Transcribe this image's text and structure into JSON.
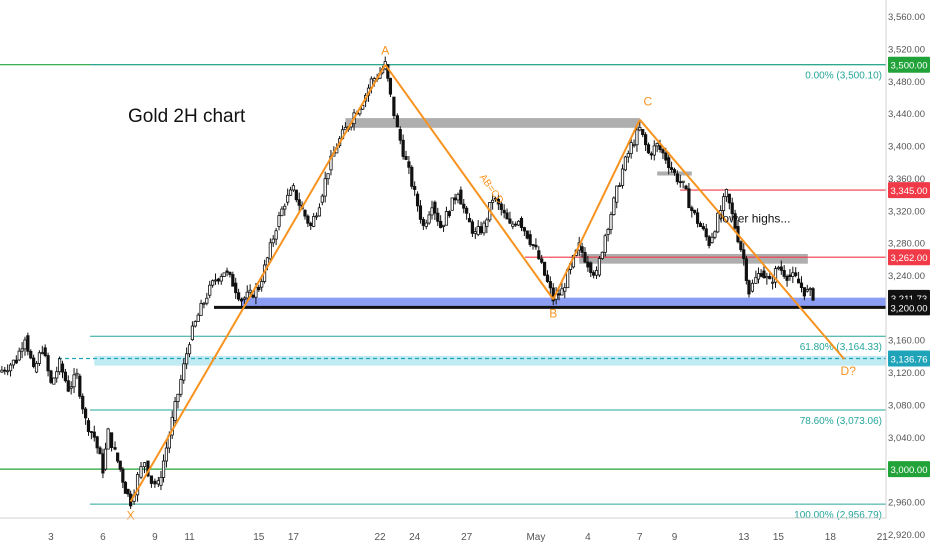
{
  "chart_data": {
    "type": "candlestick",
    "title": "Gold 2H chart",
    "y_axis": {
      "min": 2900,
      "max": 3580,
      "ticks": [
        "2,920.00",
        "2,960.00",
        "3,000.00",
        "3,040.00",
        "3,080.00",
        "3,120.00",
        "3,160.00",
        "3,200.00",
        "3,240.00",
        "3,280.00",
        "3,320.00",
        "3,360.00",
        "3,400.00",
        "3,440.00",
        "3,480.00",
        "3,520.00",
        "3,560.00"
      ],
      "tick_values": [
        2920,
        2960,
        3000,
        3040,
        3080,
        3120,
        3160,
        3200,
        3240,
        3280,
        3320,
        3360,
        3400,
        3440,
        3480,
        3520,
        3560
      ]
    },
    "x_axis": {
      "ticks": [
        {
          "label": "3",
          "day": 3
        },
        {
          "label": "6",
          "day": 6
        },
        {
          "label": "9",
          "day": 9
        },
        {
          "label": "11",
          "day": 11
        },
        {
          "label": "15",
          "day": 15
        },
        {
          "label": "17",
          "day": 17
        },
        {
          "label": "22",
          "day": 22
        },
        {
          "label": "24",
          "day": 24
        },
        {
          "label": "27",
          "day": 27
        },
        {
          "label": "May",
          "day": 31
        },
        {
          "label": "4",
          "day": 34
        },
        {
          "label": "7",
          "day": 37
        },
        {
          "label": "9",
          "day": 39
        },
        {
          "label": "13",
          "day": 43
        },
        {
          "label": "15",
          "day": 45
        },
        {
          "label": "18",
          "day": 48
        },
        {
          "label": "21",
          "day": 51
        }
      ]
    },
    "price_path": [
      [
        0.0,
        3120
      ],
      [
        1.0,
        3135
      ],
      [
        1.5,
        3165
      ],
      [
        2.0,
        3120
      ],
      [
        2.5,
        3150
      ],
      [
        3.0,
        3105
      ],
      [
        3.5,
        3130
      ],
      [
        4.0,
        3100
      ],
      [
        4.5,
        3115
      ],
      [
        5.0,
        3060
      ],
      [
        5.5,
        3040
      ],
      [
        6.0,
        3000
      ],
      [
        6.3,
        3045
      ],
      [
        6.7,
        3020
      ],
      [
        7.0,
        3000
      ],
      [
        7.3,
        2975
      ],
      [
        7.6,
        2960
      ],
      [
        8.0,
        2990
      ],
      [
        8.4,
        3010
      ],
      [
        8.8,
        2985
      ],
      [
        9.2,
        2980
      ],
      [
        9.5,
        3010
      ],
      [
        10.0,
        3060
      ],
      [
        10.5,
        3110
      ],
      [
        11.0,
        3160
      ],
      [
        11.5,
        3190
      ],
      [
        12.0,
        3215
      ],
      [
        12.5,
        3235
      ],
      [
        13.0,
        3245
      ],
      [
        13.5,
        3230
      ],
      [
        14.0,
        3210
      ],
      [
        14.5,
        3215
      ],
      [
        15.0,
        3225
      ],
      [
        15.5,
        3260
      ],
      [
        16.0,
        3300
      ],
      [
        16.5,
        3330
      ],
      [
        17.0,
        3345
      ],
      [
        17.5,
        3320
      ],
      [
        18.0,
        3300
      ],
      [
        18.5,
        3330
      ],
      [
        19.0,
        3370
      ],
      [
        19.5,
        3400
      ],
      [
        20.0,
        3420
      ],
      [
        20.5,
        3440
      ],
      [
        21.0,
        3455
      ],
      [
        21.5,
        3480
      ],
      [
        22.0,
        3490
      ],
      [
        22.3,
        3500
      ],
      [
        22.6,
        3460
      ],
      [
        23.0,
        3420
      ],
      [
        23.5,
        3380
      ],
      [
        24.0,
        3340
      ],
      [
        24.5,
        3300
      ],
      [
        25.0,
        3330
      ],
      [
        25.5,
        3300
      ],
      [
        26.0,
        3320
      ],
      [
        26.5,
        3345
      ],
      [
        27.0,
        3310
      ],
      [
        27.5,
        3290
      ],
      [
        28.0,
        3300
      ],
      [
        28.5,
        3335
      ],
      [
        29.0,
        3320
      ],
      [
        29.5,
        3300
      ],
      [
        30.0,
        3310
      ],
      [
        30.5,
        3290
      ],
      [
        31.0,
        3270
      ],
      [
        31.5,
        3240
      ],
      [
        32.0,
        3210
      ],
      [
        32.5,
        3220
      ],
      [
        33.0,
        3250
      ],
      [
        33.5,
        3275
      ],
      [
        34.0,
        3255
      ],
      [
        34.5,
        3240
      ],
      [
        35.0,
        3290
      ],
      [
        35.5,
        3330
      ],
      [
        36.0,
        3370
      ],
      [
        36.5,
        3400
      ],
      [
        37.0,
        3420
      ],
      [
        37.5,
        3390
      ],
      [
        38.0,
        3400
      ],
      [
        38.5,
        3385
      ],
      [
        39.0,
        3365
      ],
      [
        39.5,
        3350
      ],
      [
        40.0,
        3320
      ],
      [
        40.5,
        3300
      ],
      [
        41.0,
        3280
      ],
      [
        41.5,
        3310
      ],
      [
        42.0,
        3340
      ],
      [
        42.5,
        3300
      ],
      [
        43.0,
        3260
      ],
      [
        43.3,
        3220
      ],
      [
        43.7,
        3235
      ],
      [
        44.0,
        3245
      ],
      [
        44.5,
        3230
      ],
      [
        45.0,
        3250
      ],
      [
        45.5,
        3240
      ],
      [
        46.0,
        3235
      ],
      [
        46.5,
        3220
      ],
      [
        47.0,
        3215
      ]
    ],
    "horizontal_levels": [
      {
        "value": 3500.0,
        "color": "#22a33a",
        "label": "3,500.00",
        "style": "solid"
      },
      {
        "value": 3345.0,
        "color": "#f03a47",
        "label": "3,345.00",
        "style": "solid"
      },
      {
        "value": 3262.0,
        "color": "#f03a47",
        "label": "3,262.00",
        "style": "solid"
      },
      {
        "value": 3211.73,
        "color": "#111111",
        "label": "3,211.73",
        "style": "price"
      },
      {
        "value": 3200.0,
        "color": "#111111",
        "label": "3,200.00",
        "style": "solid"
      },
      {
        "value": 3136.76,
        "color": "#1fa3b8",
        "label": "3,136.76",
        "style": "dashed"
      },
      {
        "value": 3000.0,
        "color": "#22a33a",
        "label": "3,000.00",
        "style": "solid"
      }
    ],
    "fibonacci": [
      {
        "value": 3500.1,
        "label": "0.00% (3,500.10)"
      },
      {
        "value": 3164.33,
        "label": "61.80% (3,164.33)"
      },
      {
        "value": 3073.06,
        "label": "78.60% (3,073.06)"
      },
      {
        "value": 2956.79,
        "label": "100.00% (2,956.79)"
      }
    ],
    "harmonic_pattern": {
      "points": [
        {
          "label": "X",
          "day": 7.6,
          "value": 2960
        },
        {
          "label": "A",
          "day": 22.3,
          "value": 3500
        },
        {
          "label": "B",
          "day": 32.0,
          "value": 3210
        },
        {
          "label": "C",
          "day": 37.0,
          "value": 3432
        },
        {
          "label": "D?",
          "day": 48.8,
          "value": 3136
        }
      ],
      "leg_label": "AB=CD"
    },
    "zones": [
      {
        "name": "resistance-zone-a",
        "from_day": 20.0,
        "to_day": 37.0,
        "low": 3422,
        "high": 3434,
        "color": "#8c8c8c"
      },
      {
        "name": "resistance-zone-c",
        "from_day": 38.0,
        "to_day": 40.0,
        "low": 3363,
        "high": 3368,
        "color": "#8c8c8c"
      },
      {
        "name": "resistance-zone-262",
        "from_day": 33.5,
        "to_day": 46.7,
        "low": 3254,
        "high": 3266,
        "color": "#8c8c8c"
      },
      {
        "name": "support-zone-200",
        "from_day": 14.0,
        "to_day": 53.0,
        "low": 3200,
        "high": 3212,
        "color": "#5b73f0"
      },
      {
        "name": "support-zone-136",
        "from_day": 5.5,
        "to_day": 53.0,
        "low": 3128,
        "high": 3140,
        "color": "#a6e3ee"
      }
    ],
    "annotations": [
      {
        "text": "lower highs...",
        "day": 44.5,
        "value": 3305
      }
    ],
    "grid": false
  }
}
